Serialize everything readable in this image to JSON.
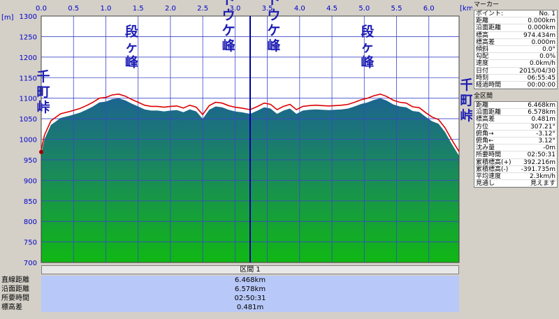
{
  "chart_data": {
    "type": "area",
    "x_unit": "[km]",
    "y_unit": "[m]",
    "x_ticks": [
      "0.0",
      "0.5",
      "1.0",
      "1.5",
      "2.0",
      "2.5",
      "3.0",
      "3.5",
      "4.0",
      "4.5",
      "5.0",
      "5.5",
      "6.0"
    ],
    "y_ticks": [
      "1300",
      "1250",
      "1200",
      "1150",
      "1100",
      "1050",
      "1000",
      "950",
      "900",
      "850",
      "800",
      "750",
      "700"
    ],
    "xlim": [
      0,
      6.468
    ],
    "ylim": [
      700,
      1300
    ],
    "marker_x": 3.234,
    "series": [
      {
        "x": [
          0.0,
          0.05,
          0.15,
          0.3,
          0.45,
          0.6,
          0.7,
          0.8,
          0.9,
          1.0,
          1.1,
          1.2,
          1.3,
          1.4,
          1.5,
          1.6,
          1.7,
          1.8,
          1.9,
          2.0,
          2.1,
          2.2,
          2.3,
          2.4,
          2.5,
          2.6,
          2.7,
          2.8,
          2.9,
          3.0,
          3.1,
          3.234,
          3.35,
          3.45,
          3.55,
          3.65,
          3.75,
          3.85,
          3.95,
          4.05,
          4.15,
          4.25,
          4.35,
          4.45,
          4.55,
          4.65,
          4.75,
          4.85,
          4.95,
          5.05,
          5.15,
          5.25,
          5.35,
          5.45,
          5.55,
          5.65,
          5.75,
          5.85,
          5.95,
          6.05,
          6.15,
          6.25,
          6.35,
          6.468
        ],
        "y": [
          974,
          1010,
          1045,
          1062,
          1068,
          1075,
          1082,
          1090,
          1100,
          1102,
          1108,
          1110,
          1105,
          1097,
          1090,
          1083,
          1080,
          1080,
          1078,
          1080,
          1081,
          1076,
          1083,
          1078,
          1060,
          1082,
          1090,
          1088,
          1082,
          1078,
          1076,
          1072,
          1080,
          1088,
          1085,
          1072,
          1080,
          1085,
          1072,
          1080,
          1082,
          1083,
          1082,
          1081,
          1082,
          1083,
          1085,
          1090,
          1096,
          1100,
          1106,
          1110,
          1104,
          1095,
          1090,
          1088,
          1079,
          1077,
          1065,
          1054,
          1048,
          1028,
          1000,
          970
        ]
      }
    ],
    "labels": [
      {
        "text": "千町峠",
        "x": 0.0,
        "y": 1050
      },
      {
        "text": "段ヶ峰",
        "x": 1.4,
        "y": 1160
      },
      {
        "text": "フトウケ峰",
        "x": 2.9,
        "y": 1200
      },
      {
        "text": "フトウケ峰",
        "x": 3.6,
        "y": 1200
      },
      {
        "text": "段ヶ峰",
        "x": 5.05,
        "y": 1160
      },
      {
        "text": "千町峠",
        "x": 6.468,
        "y": 1030
      }
    ]
  },
  "interval": {
    "title": "区間 1"
  },
  "summary": [
    {
      "label": "直線距離",
      "value": "6.468km"
    },
    {
      "label": "沿面距離",
      "value": "6.578km"
    },
    {
      "label": "所要時間",
      "value": "02:50:31"
    },
    {
      "label": "標高差",
      "value": "0.481m"
    }
  ],
  "marker_panel": {
    "title": "マーカー",
    "rows": [
      {
        "k": "ポイント:",
        "v": "No. 1"
      },
      {
        "k": "距離",
        "v": "0.000km"
      },
      {
        "k": "沿面距離",
        "v": "0.000km"
      },
      {
        "k": "標高",
        "v": "974.434m"
      },
      {
        "k": "標高差",
        "v": "0.000m"
      },
      {
        "k": "傾斜",
        "v": "0.0°"
      },
      {
        "k": "勾配",
        "v": "0.0%"
      },
      {
        "k": "速度",
        "v": "0.0km/h"
      },
      {
        "k": "日付",
        "v": "2015/04/30"
      },
      {
        "k": "時刻",
        "v": "06:55:45"
      },
      {
        "k": "経過時間",
        "v": "00:00:00"
      }
    ]
  },
  "section_panel": {
    "title": "全区間",
    "rows": [
      {
        "k": "距離",
        "v": "6.468km"
      },
      {
        "k": "沿面距離",
        "v": "6.578km"
      },
      {
        "k": "標高差",
        "v": "0.481m"
      },
      {
        "k": "方位",
        "v": "307.21°"
      },
      {
        "k": "俯角→",
        "v": "-3.12°"
      },
      {
        "k": "俯角←",
        "v": "3.12°"
      },
      {
        "k": "沈み量",
        "v": "-0m"
      },
      {
        "k": "所要時間",
        "v": "02:50:31"
      },
      {
        "k": "累積標高(+)",
        "v": "392.216m"
      },
      {
        "k": "累積標高(-)",
        "v": "-391.735m"
      },
      {
        "k": "平均速度",
        "v": "2.3km/h"
      },
      {
        "k": "見通し",
        "v": "見えます"
      }
    ]
  },
  "colors": {
    "line": "#e00000",
    "marker": "#0000a0",
    "grid": "#3c46c8",
    "sky": "#ffffff",
    "fill_top": "#1e6e8c",
    "fill_bottom": "#14b414"
  }
}
